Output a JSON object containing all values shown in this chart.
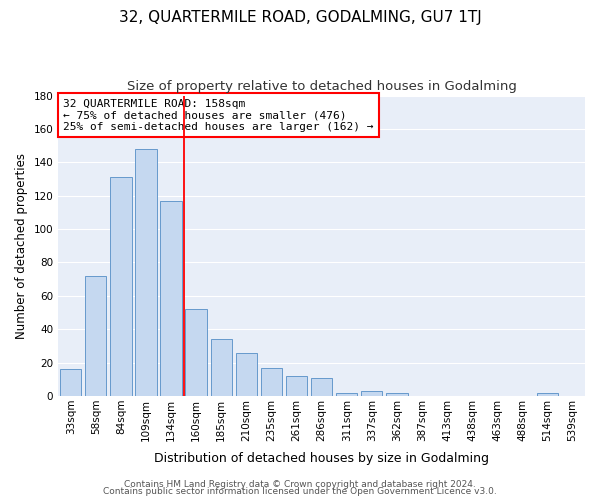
{
  "title": "32, QUARTERMILE ROAD, GODALMING, GU7 1TJ",
  "subtitle": "Size of property relative to detached houses in Godalming",
  "xlabel": "Distribution of detached houses by size in Godalming",
  "ylabel": "Number of detached properties",
  "bar_labels": [
    "33sqm",
    "58sqm",
    "84sqm",
    "109sqm",
    "134sqm",
    "160sqm",
    "185sqm",
    "210sqm",
    "235sqm",
    "261sqm",
    "286sqm",
    "311sqm",
    "337sqm",
    "362sqm",
    "387sqm",
    "413sqm",
    "438sqm",
    "463sqm",
    "488sqm",
    "514sqm",
    "539sqm"
  ],
  "bar_values": [
    16,
    72,
    131,
    148,
    117,
    52,
    34,
    26,
    17,
    12,
    11,
    2,
    3,
    2,
    0,
    0,
    0,
    0,
    0,
    2,
    0
  ],
  "bar_color": "#c5d8f0",
  "bar_edge_color": "#6699cc",
  "annotation_box_text": "32 QUARTERMILE ROAD: 158sqm\n← 75% of detached houses are smaller (476)\n25% of semi-detached houses are larger (162) →",
  "annotation_box_color": "white",
  "annotation_box_edge_color": "red",
  "vline_x": 5.0,
  "vline_color": "red",
  "ylim": [
    0,
    180
  ],
  "yticks": [
    0,
    20,
    40,
    60,
    80,
    100,
    120,
    140,
    160,
    180
  ],
  "background_color": "#e8eef8",
  "grid_color": "#ffffff",
  "footer_line1": "Contains HM Land Registry data © Crown copyright and database right 2024.",
  "footer_line2": "Contains public sector information licensed under the Open Government Licence v3.0.",
  "title_fontsize": 11,
  "subtitle_fontsize": 9.5,
  "xlabel_fontsize": 9,
  "ylabel_fontsize": 8.5,
  "tick_fontsize": 7.5,
  "footer_fontsize": 6.5,
  "annotation_fontsize": 8.0,
  "bar_width": 0.85
}
